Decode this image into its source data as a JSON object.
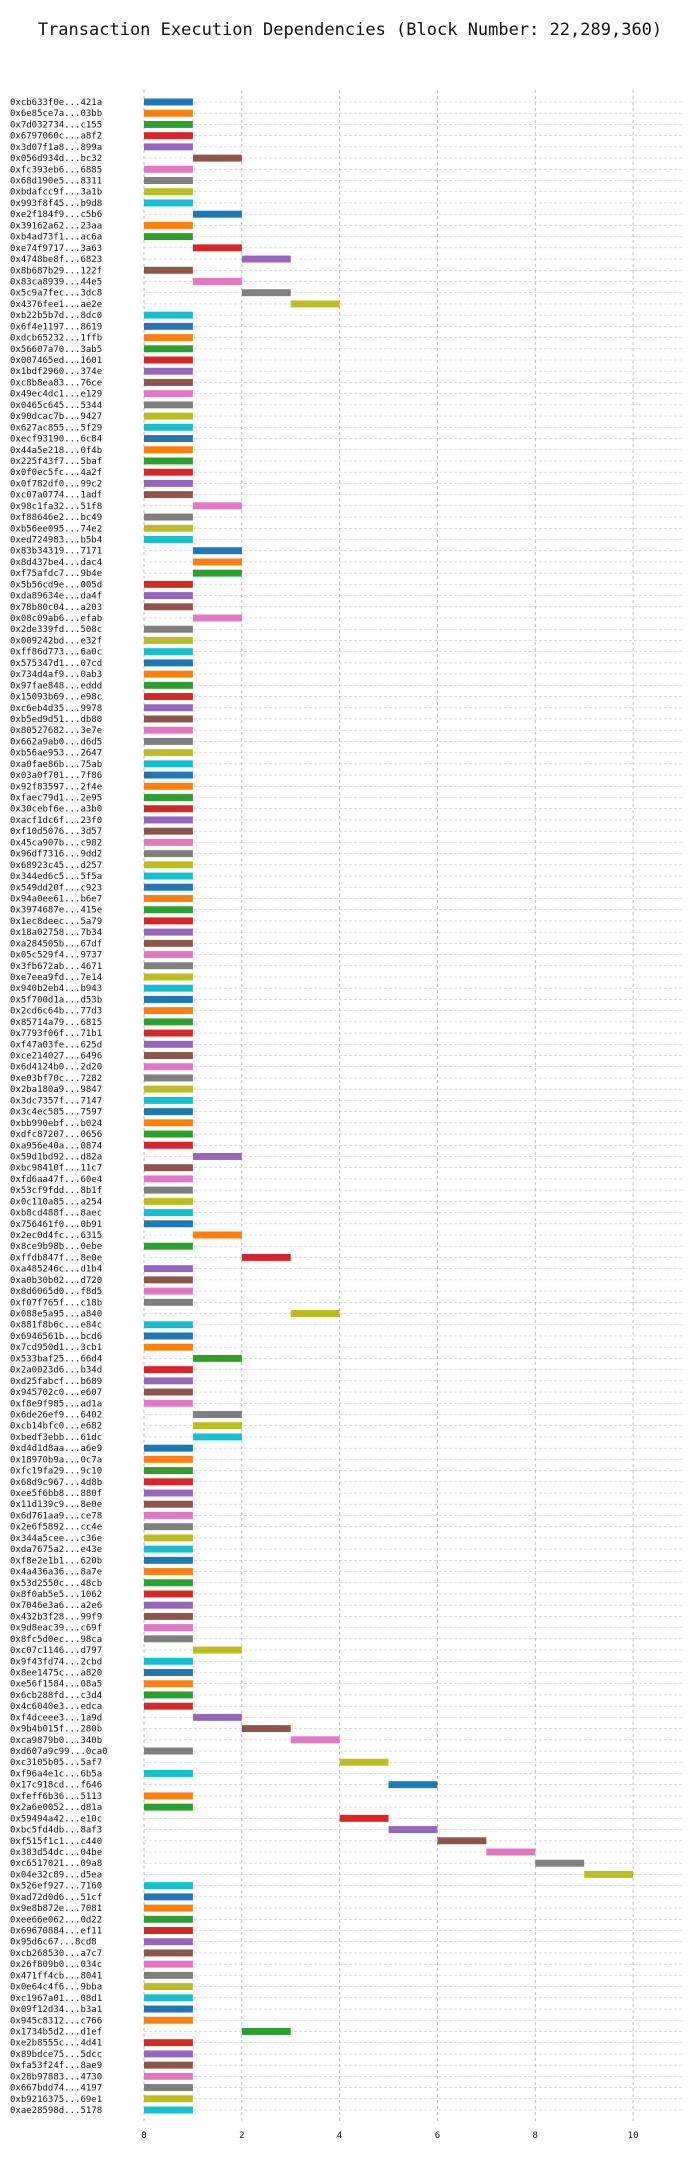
{
  "chart_data": {
    "type": "bar",
    "orientation": "horizontal",
    "title": "Transaction Execution Dependencies (Block Number: 22,289,360)",
    "xlabel": "",
    "ylabel": "",
    "xlim": [
      0,
      11
    ],
    "xticks": [
      0,
      2,
      4,
      6,
      8,
      10
    ],
    "grid": true,
    "legend": "none",
    "palette": [
      "#1f77b4",
      "#ff7f0e",
      "#2ca02c",
      "#d62728",
      "#9467bd",
      "#8c564b",
      "#e377c2",
      "#7f7f7f",
      "#bcbd22",
      "#17becf"
    ],
    "rows": [
      {
        "label": "0xcb633f0e...421a",
        "start": 0,
        "end": 1
      },
      {
        "label": "0x6e85ce7a...03bb",
        "start": 0,
        "end": 1
      },
      {
        "label": "0x7d032734...c155",
        "start": 0,
        "end": 1
      },
      {
        "label": "0x6797060c...a8f2",
        "start": 0,
        "end": 1
      },
      {
        "label": "0x3d07f1a8...899a",
        "start": 0,
        "end": 1
      },
      {
        "label": "0x056d934d...bc32",
        "start": 1,
        "end": 2
      },
      {
        "label": "0xfc393eb6...6885",
        "start": 0,
        "end": 1
      },
      {
        "label": "0x68d190e5...8311",
        "start": 0,
        "end": 1
      },
      {
        "label": "0xbdafcc9f...3a1b",
        "start": 0,
        "end": 1
      },
      {
        "label": "0x993f8f45...b9d8",
        "start": 0,
        "end": 1
      },
      {
        "label": "0xe2f184f9...c5b6",
        "start": 1,
        "end": 2
      },
      {
        "label": "0x39162a62...23aa",
        "start": 0,
        "end": 1
      },
      {
        "label": "0xb4ad73f1...ac6a",
        "start": 0,
        "end": 1
      },
      {
        "label": "0xe74f9717...3a63",
        "start": 1,
        "end": 2
      },
      {
        "label": "0x4748be8f...6823",
        "start": 2,
        "end": 3
      },
      {
        "label": "0x8b687b29...122f",
        "start": 0,
        "end": 1
      },
      {
        "label": "0x83ca8939...44e5",
        "start": 1,
        "end": 2
      },
      {
        "label": "0x5c9a7fec...3dc8",
        "start": 2,
        "end": 3
      },
      {
        "label": "0x4376fee1...ae2e",
        "start": 3,
        "end": 4
      },
      {
        "label": "0xb22b5b7d...8dc0",
        "start": 0,
        "end": 1
      },
      {
        "label": "0x6f4e1197...8619",
        "start": 0,
        "end": 1
      },
      {
        "label": "0xdcb65232...1ffb",
        "start": 0,
        "end": 1
      },
      {
        "label": "0x56607a70...3ab5",
        "start": 0,
        "end": 1
      },
      {
        "label": "0x007465ed...1601",
        "start": 0,
        "end": 1
      },
      {
        "label": "0x1bdf2960...374e",
        "start": 0,
        "end": 1
      },
      {
        "label": "0xc8b8ea83...76ce",
        "start": 0,
        "end": 1
      },
      {
        "label": "0x49ec4dc1...e129",
        "start": 0,
        "end": 1
      },
      {
        "label": "0x0465c645...5344",
        "start": 0,
        "end": 1
      },
      {
        "label": "0x90dcac7b...9427",
        "start": 0,
        "end": 1
      },
      {
        "label": "0x627ac855...5f29",
        "start": 0,
        "end": 1
      },
      {
        "label": "0xecf93190...6c84",
        "start": 0,
        "end": 1
      },
      {
        "label": "0x44a5e218...0f4b",
        "start": 0,
        "end": 1
      },
      {
        "label": "0x225f43f7...5baf",
        "start": 0,
        "end": 1
      },
      {
        "label": "0x0f0ec5fc...4a2f",
        "start": 0,
        "end": 1
      },
      {
        "label": "0x0f782df0...99c2",
        "start": 0,
        "end": 1
      },
      {
        "label": "0xc07a0774...1adf",
        "start": 0,
        "end": 1
      },
      {
        "label": "0x98c1fa32...51f8",
        "start": 1,
        "end": 2
      },
      {
        "label": "0xf88646e2...bc49",
        "start": 0,
        "end": 1
      },
      {
        "label": "0xb56ee095...74e2",
        "start": 0,
        "end": 1
      },
      {
        "label": "0xed724983...b5b4",
        "start": 0,
        "end": 1
      },
      {
        "label": "0x83b34319...7171",
        "start": 1,
        "end": 2
      },
      {
        "label": "0x8d437be4...dac4",
        "start": 1,
        "end": 2
      },
      {
        "label": "0xf75afdc7...9b4e",
        "start": 1,
        "end": 2
      },
      {
        "label": "0x5b56cd9e...005d",
        "start": 0,
        "end": 1
      },
      {
        "label": "0xda89634e...da4f",
        "start": 0,
        "end": 1
      },
      {
        "label": "0x78b80c04...a203",
        "start": 0,
        "end": 1
      },
      {
        "label": "0x08c09ab6...efab",
        "start": 1,
        "end": 2
      },
      {
        "label": "0x2de339fd...508c",
        "start": 0,
        "end": 1
      },
      {
        "label": "0x009242bd...e32f",
        "start": 0,
        "end": 1
      },
      {
        "label": "0xff86d773...6a0c",
        "start": 0,
        "end": 1
      },
      {
        "label": "0x575347d1...07cd",
        "start": 0,
        "end": 1
      },
      {
        "label": "0x734d4af9...0ab3",
        "start": 0,
        "end": 1
      },
      {
        "label": "0x97fae848...eddd",
        "start": 0,
        "end": 1
      },
      {
        "label": "0x15093b69...e98c",
        "start": 0,
        "end": 1
      },
      {
        "label": "0xc6eb4d35...9978",
        "start": 0,
        "end": 1
      },
      {
        "label": "0xb5ed9d51...db80",
        "start": 0,
        "end": 1
      },
      {
        "label": "0x80527682...3e7e",
        "start": 0,
        "end": 1
      },
      {
        "label": "0x662a9ab0...d6d5",
        "start": 0,
        "end": 1
      },
      {
        "label": "0xb56ae953...2647",
        "start": 0,
        "end": 1
      },
      {
        "label": "0xa0fae86b...75ab",
        "start": 0,
        "end": 1
      },
      {
        "label": "0x03a0f701...7f86",
        "start": 0,
        "end": 1
      },
      {
        "label": "0x92f83597...2f4e",
        "start": 0,
        "end": 1
      },
      {
        "label": "0xfaec79d1...2e95",
        "start": 0,
        "end": 1
      },
      {
        "label": "0x30cebf6e...a3b0",
        "start": 0,
        "end": 1
      },
      {
        "label": "0xacf1dc6f...23f0",
        "start": 0,
        "end": 1
      },
      {
        "label": "0xf10d5076...3d57",
        "start": 0,
        "end": 1
      },
      {
        "label": "0x45ca907b...c982",
        "start": 0,
        "end": 1
      },
      {
        "label": "0x96df7316...9dd2",
        "start": 0,
        "end": 1
      },
      {
        "label": "0x68923c45...d257",
        "start": 0,
        "end": 1
      },
      {
        "label": "0x344ed6c5...5f5a",
        "start": 0,
        "end": 1
      },
      {
        "label": "0x549dd20f...c923",
        "start": 0,
        "end": 1
      },
      {
        "label": "0x94a0ee61...b6e7",
        "start": 0,
        "end": 1
      },
      {
        "label": "0x3974687e...415e",
        "start": 0,
        "end": 1
      },
      {
        "label": "0x1ec8deec...5a79",
        "start": 0,
        "end": 1
      },
      {
        "label": "0x18a02758...7b34",
        "start": 0,
        "end": 1
      },
      {
        "label": "0xa284505b...67df",
        "start": 0,
        "end": 1
      },
      {
        "label": "0x05c529f4...9737",
        "start": 0,
        "end": 1
      },
      {
        "label": "0x3fb672ab...4671",
        "start": 0,
        "end": 1
      },
      {
        "label": "0xe7eea9fd...7e14",
        "start": 0,
        "end": 1
      },
      {
        "label": "0x940b2eb4...b943",
        "start": 0,
        "end": 1
      },
      {
        "label": "0x5f700d1a...d53b",
        "start": 0,
        "end": 1
      },
      {
        "label": "0x2cd6c64b...77d3",
        "start": 0,
        "end": 1
      },
      {
        "label": "0x85714a79...6815",
        "start": 0,
        "end": 1
      },
      {
        "label": "0x7793f06f...71b1",
        "start": 0,
        "end": 1
      },
      {
        "label": "0xf47a03fe...625d",
        "start": 0,
        "end": 1
      },
      {
        "label": "0xce214027...6496",
        "start": 0,
        "end": 1
      },
      {
        "label": "0x6d4124b0...2d20",
        "start": 0,
        "end": 1
      },
      {
        "label": "0xe03bf70c...7282",
        "start": 0,
        "end": 1
      },
      {
        "label": "0x2ba180a9...9847",
        "start": 0,
        "end": 1
      },
      {
        "label": "0x3dc7357f...7147",
        "start": 0,
        "end": 1
      },
      {
        "label": "0x3c4ec585...7597",
        "start": 0,
        "end": 1
      },
      {
        "label": "0xbb990ebf...b024",
        "start": 0,
        "end": 1
      },
      {
        "label": "0xdfc87207...0656",
        "start": 0,
        "end": 1
      },
      {
        "label": "0xa956e40a...0874",
        "start": 0,
        "end": 1
      },
      {
        "label": "0x59d1bd92...d82a",
        "start": 1,
        "end": 2
      },
      {
        "label": "0xbc98410f...11c7",
        "start": 0,
        "end": 1
      },
      {
        "label": "0xfd6aa47f...60e4",
        "start": 0,
        "end": 1
      },
      {
        "label": "0x53cf9fdd...8b1f",
        "start": 0,
        "end": 1
      },
      {
        "label": "0x0c110a85...a254",
        "start": 0,
        "end": 1
      },
      {
        "label": "0xb8cd488f...8aec",
        "start": 0,
        "end": 1
      },
      {
        "label": "0x756461f0...0b91",
        "start": 0,
        "end": 1
      },
      {
        "label": "0x2ec0d4fc...6315",
        "start": 1,
        "end": 2
      },
      {
        "label": "0x8ce9b98b...0ebe",
        "start": 0,
        "end": 1
      },
      {
        "label": "0xffdb847f...8e0e",
        "start": 2,
        "end": 3
      },
      {
        "label": "0xa485246c...d1b4",
        "start": 0,
        "end": 1
      },
      {
        "label": "0xa0b30b02...d720",
        "start": 0,
        "end": 1
      },
      {
        "label": "0x8d6065d0...f8d5",
        "start": 0,
        "end": 1
      },
      {
        "label": "0xf07f765f...c18b",
        "start": 0,
        "end": 1
      },
      {
        "label": "0x088e5a95...a840",
        "start": 3,
        "end": 4
      },
      {
        "label": "0x881f8b6c...e84c",
        "start": 0,
        "end": 1
      },
      {
        "label": "0x6946561b...bcd6",
        "start": 0,
        "end": 1
      },
      {
        "label": "0x7cd950d1...3cb1",
        "start": 0,
        "end": 1
      },
      {
        "label": "0x533baf25...66d4",
        "start": 1,
        "end": 2
      },
      {
        "label": "0x2a0023d6...b34d",
        "start": 0,
        "end": 1
      },
      {
        "label": "0xd25fabcf...b689",
        "start": 0,
        "end": 1
      },
      {
        "label": "0x945702c0...e607",
        "start": 0,
        "end": 1
      },
      {
        "label": "0xf8e9f985...ad1a",
        "start": 0,
        "end": 1
      },
      {
        "label": "0x6de26ef9...6402",
        "start": 1,
        "end": 2
      },
      {
        "label": "0xcb14bfc0...e682",
        "start": 1,
        "end": 2
      },
      {
        "label": "0xbedf3ebb...61dc",
        "start": 1,
        "end": 2
      },
      {
        "label": "0xd4d1d8aa...a6e9",
        "start": 0,
        "end": 1
      },
      {
        "label": "0x18970b9a...0c7a",
        "start": 0,
        "end": 1
      },
      {
        "label": "0xfc19fa29...9c10",
        "start": 0,
        "end": 1
      },
      {
        "label": "0x68d9c967...4d8b",
        "start": 0,
        "end": 1
      },
      {
        "label": "0xee5f6bb8...880f",
        "start": 0,
        "end": 1
      },
      {
        "label": "0x11d139c9...8e0e",
        "start": 0,
        "end": 1
      },
      {
        "label": "0x6d761aa9...ce78",
        "start": 0,
        "end": 1
      },
      {
        "label": "0x2e6f5892...cc4e",
        "start": 0,
        "end": 1
      },
      {
        "label": "0x344a5cee...c36e",
        "start": 0,
        "end": 1
      },
      {
        "label": "0xda7675a2...e43e",
        "start": 0,
        "end": 1
      },
      {
        "label": "0xf8e2e1b1...620b",
        "start": 0,
        "end": 1
      },
      {
        "label": "0x4a436a36...8a7e",
        "start": 0,
        "end": 1
      },
      {
        "label": "0x53d2550c...48cb",
        "start": 0,
        "end": 1
      },
      {
        "label": "0x8f0ab5e5...1062",
        "start": 0,
        "end": 1
      },
      {
        "label": "0x7046e3a6...a2e6",
        "start": 0,
        "end": 1
      },
      {
        "label": "0x432b3f28...99f9",
        "start": 0,
        "end": 1
      },
      {
        "label": "0x9d8eac39...c69f",
        "start": 0,
        "end": 1
      },
      {
        "label": "0x8fc5d0ec...98ca",
        "start": 0,
        "end": 1
      },
      {
        "label": "0xc07c1146...d797",
        "start": 1,
        "end": 2
      },
      {
        "label": "0x9f43fd74...2cbd",
        "start": 0,
        "end": 1
      },
      {
        "label": "0x8ee1475c...a820",
        "start": 0,
        "end": 1
      },
      {
        "label": "0xe56f1584...08a5",
        "start": 0,
        "end": 1
      },
      {
        "label": "0x6cb288fd...c3d4",
        "start": 0,
        "end": 1
      },
      {
        "label": "0x4c6040e3...edca",
        "start": 0,
        "end": 1
      },
      {
        "label": "0xf4dceee3...1a9d",
        "start": 1,
        "end": 2
      },
      {
        "label": "0x9b4b015f...280b",
        "start": 2,
        "end": 3
      },
      {
        "label": "0xca9879b0...340b",
        "start": 3,
        "end": 4
      },
      {
        "label": "0xd607a9c99...0ca0",
        "start": 0,
        "end": 1
      },
      {
        "label": "0xc3105b05...5af7",
        "start": 4,
        "end": 5
      },
      {
        "label": "0xf96a4e1c...6b5a",
        "start": 0,
        "end": 1
      },
      {
        "label": "0x17c918cd...f646",
        "start": 5,
        "end": 6
      },
      {
        "label": "0xfeff6b36...5113",
        "start": 0,
        "end": 1
      },
      {
        "label": "0x2a6e0052...d81a",
        "start": 0,
        "end": 1
      },
      {
        "label": "0x59494a42...e10c",
        "start": 4,
        "end": 5
      },
      {
        "label": "0xbc5fd4db...8af3",
        "start": 5,
        "end": 6
      },
      {
        "label": "0xf515f1c1...c440",
        "start": 6,
        "end": 7
      },
      {
        "label": "0x383d54dc...04be",
        "start": 7,
        "end": 8
      },
      {
        "label": "0xc6517021...09a8",
        "start": 8,
        "end": 9
      },
      {
        "label": "0x04e32c89...d5ea",
        "start": 9,
        "end": 10
      },
      {
        "label": "0x526ef927...7160",
        "start": 0,
        "end": 1
      },
      {
        "label": "0xad72d0d6...51cf",
        "start": 0,
        "end": 1
      },
      {
        "label": "0x9e8b872e...7081",
        "start": 0,
        "end": 1
      },
      {
        "label": "0xee66e062...0d22",
        "start": 0,
        "end": 1
      },
      {
        "label": "0x69670884...ef11",
        "start": 0,
        "end": 1
      },
      {
        "label": "0x95d6c67...8cd8",
        "start": 0,
        "end": 1
      },
      {
        "label": "0xcb268530...a7c7",
        "start": 0,
        "end": 1
      },
      {
        "label": "0x26f809b0...034c",
        "start": 0,
        "end": 1
      },
      {
        "label": "0x471ff4cb...8041",
        "start": 0,
        "end": 1
      },
      {
        "label": "0x0e64c4f6...9bba",
        "start": 0,
        "end": 1
      },
      {
        "label": "0xc1967a01...08d1",
        "start": 0,
        "end": 1
      },
      {
        "label": "0x09f12d34...b3a1",
        "start": 0,
        "end": 1
      },
      {
        "label": "0x945c8312...c766",
        "start": 0,
        "end": 1
      },
      {
        "label": "0x1734b5d2...d1ef",
        "start": 2,
        "end": 3
      },
      {
        "label": "0xe2b8555c...4d41",
        "start": 0,
        "end": 1
      },
      {
        "label": "0x89bdce75...5dcc",
        "start": 0,
        "end": 1
      },
      {
        "label": "0xfa53f24f...8ae9",
        "start": 0,
        "end": 1
      },
      {
        "label": "0x28b97883...4730",
        "start": 0,
        "end": 1
      },
      {
        "label": "0x667bdd74...4197",
        "start": 0,
        "end": 1
      },
      {
        "label": "0xb9216375...69e1",
        "start": 0,
        "end": 1
      },
      {
        "label": "0xae28598d...5178",
        "start": 0,
        "end": 1
      }
    ]
  }
}
